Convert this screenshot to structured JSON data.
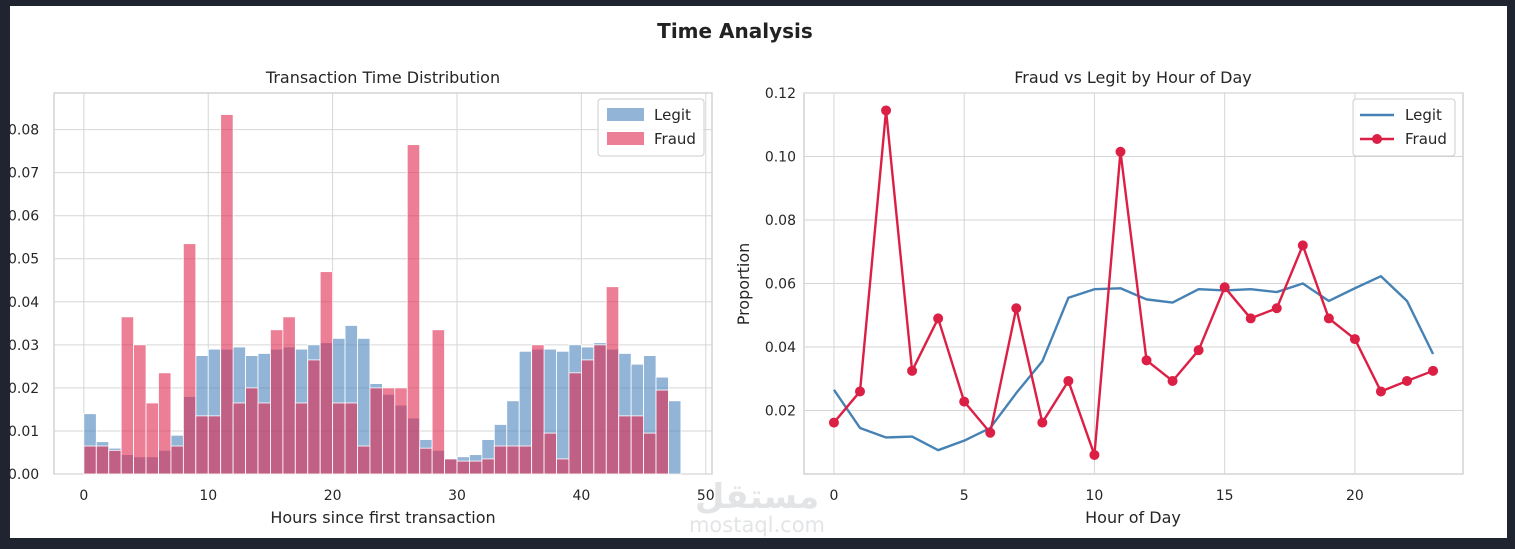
{
  "figure": {
    "title": "Time Analysis"
  },
  "watermark": {
    "line1": "مستقل",
    "line2": "mostaql.com"
  },
  "chart_data": [
    {
      "type": "bar",
      "subtype": "overlapping-histogram",
      "title": "Transaction Time Distribution",
      "xlabel": "Hours since first transaction",
      "ylabel": "",
      "xlim": [
        -2.4,
        50.5
      ],
      "ylim": [
        0,
        0.0885
      ],
      "xticks": [
        0,
        10,
        20,
        30,
        40,
        50
      ],
      "yticks": [
        0.0,
        0.01,
        0.02,
        0.03,
        0.04,
        0.05,
        0.06,
        0.07,
        0.08
      ],
      "ytick_labels": [
        "0.00",
        "0.01",
        "0.02",
        "0.03",
        "0.04",
        "0.05",
        "0.06",
        "0.07",
        "0.08"
      ],
      "grid": true,
      "legend": {
        "position": "top-right",
        "entries": [
          "Legit",
          "Fraud"
        ]
      },
      "series": [
        {
          "name": "Legit",
          "color": "#4a82bb",
          "opacity": 0.6,
          "bin_start": 0,
          "bin_width": 1,
          "values": [
            0.014,
            0.0075,
            0.006,
            0.0045,
            0.004,
            0.004,
            0.0055,
            0.009,
            0.018,
            0.0275,
            0.029,
            0.029,
            0.0295,
            0.0275,
            0.028,
            0.029,
            0.0295,
            0.029,
            0.03,
            0.0305,
            0.0315,
            0.0345,
            0.0315,
            0.021,
            0.0185,
            0.016,
            0.013,
            0.008,
            0.0055,
            0.0035,
            0.004,
            0.0045,
            0.008,
            0.0115,
            0.017,
            0.0285,
            0.029,
            0.029,
            0.0285,
            0.03,
            0.0295,
            0.0305,
            0.029,
            0.028,
            0.0255,
            0.0275,
            0.0225,
            0.017
          ]
        },
        {
          "name": "Fraud",
          "color": "#e0284f",
          "opacity": 0.6,
          "bin_start": 0,
          "bin_width": 1,
          "values": [
            0.0065,
            0.0065,
            0.0055,
            0.0365,
            0.03,
            0.0165,
            0.0235,
            0.0065,
            0.0535,
            0.0135,
            0.0135,
            0.0835,
            0.0165,
            0.02,
            0.0165,
            0.0335,
            0.0365,
            0.0165,
            0.0265,
            0.047,
            0.0165,
            0.0165,
            0.0065,
            0.02,
            0.02,
            0.02,
            0.0765,
            0.006,
            0.0335,
            0.0035,
            0.003,
            0.003,
            0.0035,
            0.0065,
            0.0065,
            0.0065,
            0.03,
            0.0095,
            0.0035,
            0.0235,
            0.0265,
            0.03,
            0.0435,
            0.0135,
            0.0135,
            0.0095,
            0.0195
          ]
        }
      ]
    },
    {
      "type": "line",
      "title": "Fraud vs Legit by Hour of Day",
      "xlabel": "Hour of Day",
      "ylabel": "Proportion",
      "xlim": [
        -1.15,
        24.15
      ],
      "ylim": [
        0.0,
        0.12
      ],
      "xticks": [
        0,
        5,
        10,
        15,
        20
      ],
      "yticks": [
        0.02,
        0.04,
        0.06,
        0.08,
        0.1,
        0.12
      ],
      "ytick_labels": [
        "0.02",
        "0.04",
        "0.06",
        "0.08",
        "0.10",
        "0.12"
      ],
      "grid": true,
      "legend": {
        "position": "top-right",
        "entries": [
          "Legit",
          "Fraud"
        ]
      },
      "x": [
        0,
        1,
        2,
        3,
        4,
        5,
        6,
        7,
        8,
        9,
        10,
        11,
        12,
        13,
        14,
        15,
        16,
        17,
        18,
        19,
        20,
        21,
        22,
        23
      ],
      "series": [
        {
          "name": "Legit",
          "color": "#4682b4",
          "marker": false,
          "values": [
            0.0265,
            0.0145,
            0.0115,
            0.0118,
            0.0075,
            0.0105,
            0.0145,
            0.0255,
            0.0355,
            0.0555,
            0.0582,
            0.0585,
            0.055,
            0.054,
            0.0582,
            0.0578,
            0.0582,
            0.0573,
            0.06,
            0.0545,
            0.0585,
            0.0623,
            0.0545,
            0.0378
          ]
        },
        {
          "name": "Fraud",
          "color": "#dc1f45",
          "marker": true,
          "values": [
            0.0162,
            0.026,
            0.1145,
            0.0325,
            0.049,
            0.0228,
            0.013,
            0.0522,
            0.0162,
            0.0293,
            0.006,
            0.1015,
            0.0358,
            0.0293,
            0.039,
            0.0588,
            0.049,
            0.0522,
            0.072,
            0.049,
            0.0425,
            0.026,
            0.0293,
            0.0325
          ]
        }
      ]
    }
  ]
}
